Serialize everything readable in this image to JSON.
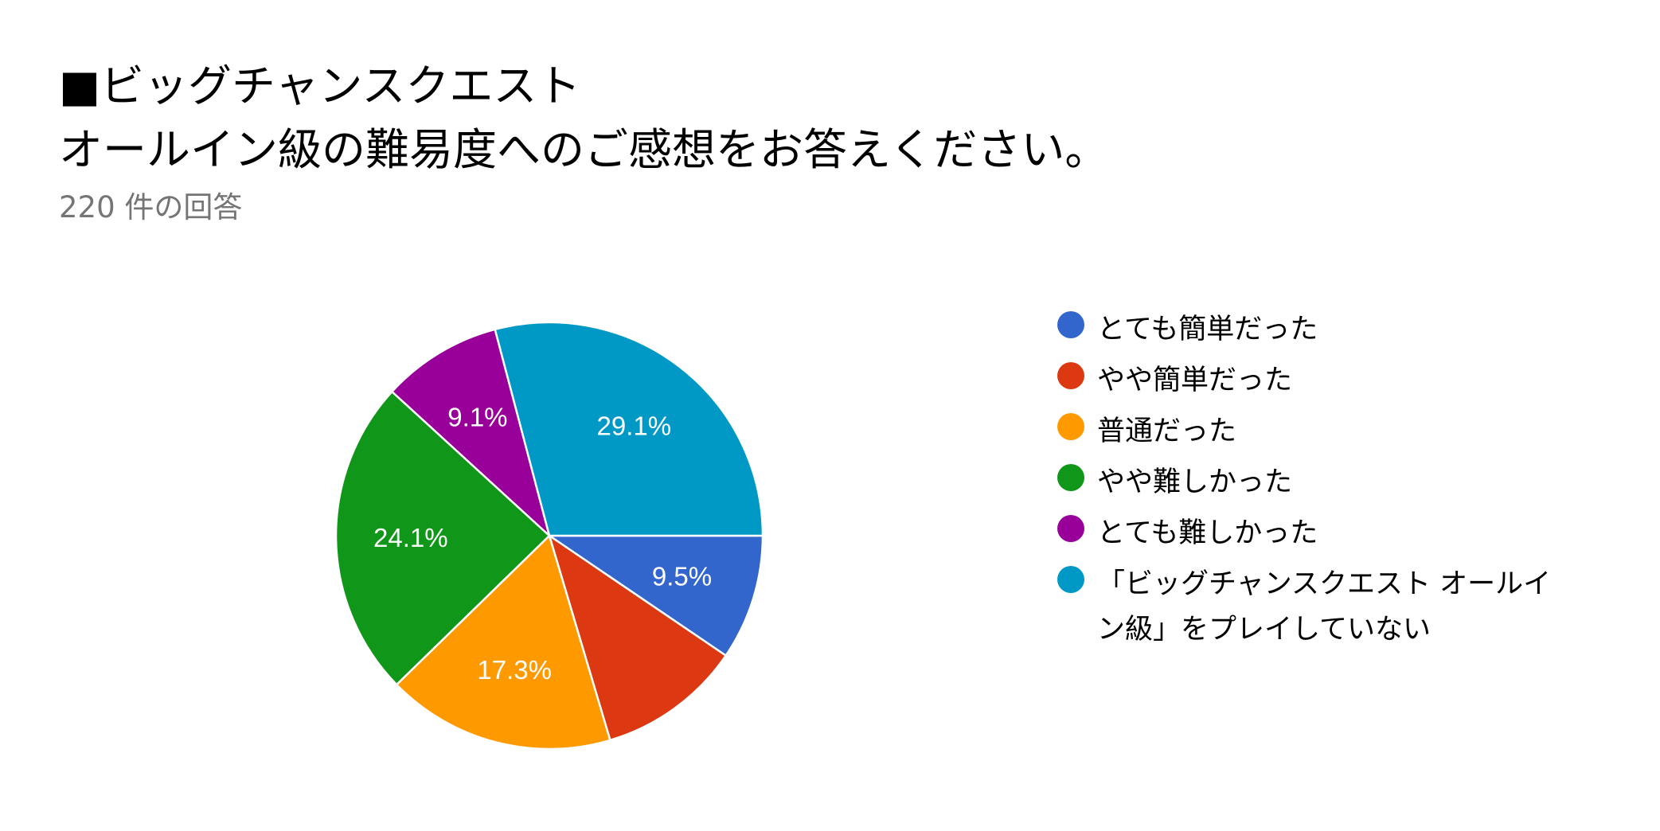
{
  "title": {
    "line1": "■ビッグチャンスクエスト",
    "line2": "オールイン級の難易度へのご感想をお答えください。"
  },
  "response_count": "220 件の回答",
  "chart_data": {
    "type": "pie",
    "total_responses": 220,
    "slices": [
      {
        "label": "とても簡単だった",
        "value": 9.5,
        "display": "9.5%",
        "color": "#3366cc"
      },
      {
        "label": "やや簡単だった",
        "value": 10.9,
        "display": "",
        "color": "#dc3912"
      },
      {
        "label": "普通だった",
        "value": 17.3,
        "display": "17.3%",
        "color": "#ff9900"
      },
      {
        "label": "やや難しかった",
        "value": 24.1,
        "display": "24.1%",
        "color": "#109618"
      },
      {
        "label": "とても難しかった",
        "value": 9.1,
        "display": "9.1%",
        "color": "#990099"
      },
      {
        "label": "「ビッグチャンスクエスト オールイン級」をプレイしていない",
        "value": 29.1,
        "display": "29.1%",
        "color": "#0099c6"
      }
    ],
    "start_angle": "3 o'clock, clockwise",
    "legend_position": "right"
  },
  "legend": {
    "items": [
      {
        "label": "とても簡単だった",
        "color": "#3366cc"
      },
      {
        "label": "やや簡単だった",
        "color": "#dc3912"
      },
      {
        "label": "普通だった",
        "color": "#ff9900"
      },
      {
        "label": "やや難しかった",
        "color": "#109618"
      },
      {
        "label": "とても難しかった",
        "color": "#990099"
      },
      {
        "label": "「ビッグチャンスクエスト オールイン級」をプレイしていない",
        "color": "#0099c6"
      }
    ]
  }
}
